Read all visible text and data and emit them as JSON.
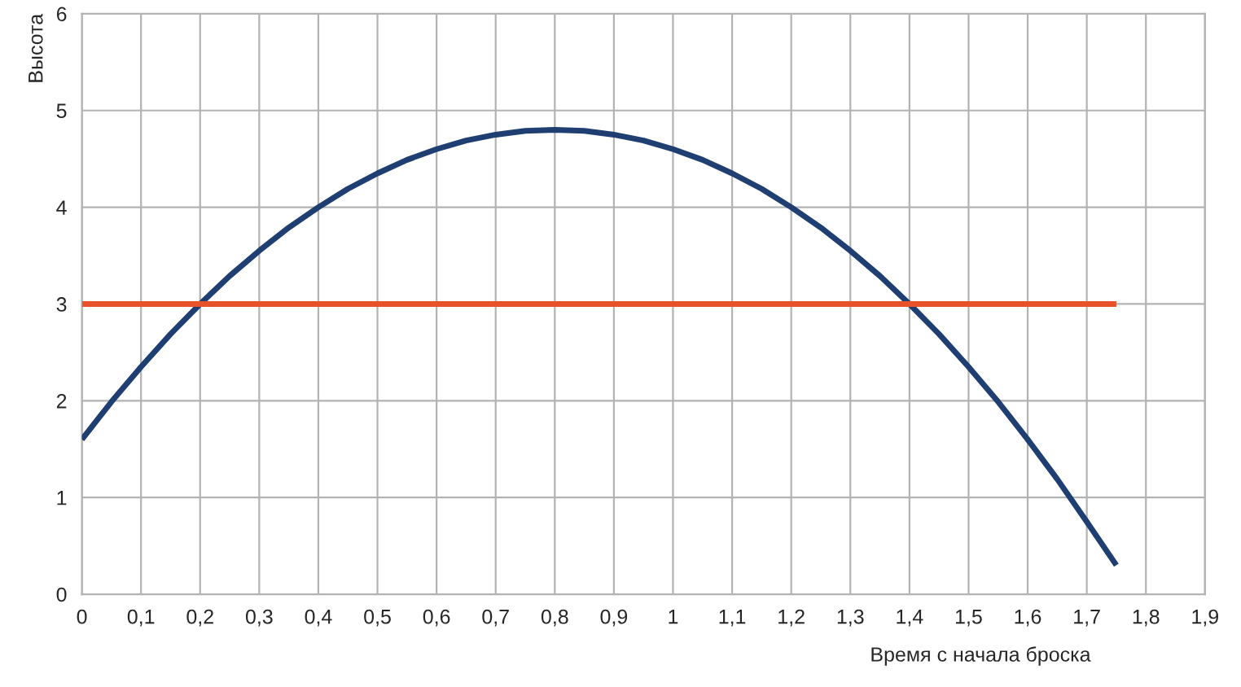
{
  "chart_data": {
    "type": "line",
    "xlabel": "Время с начала броска",
    "ylabel": "Высота",
    "series": [
      {
        "color": "#1f3f73",
        "x": [
          0,
          0.05,
          0.1,
          0.15,
          0.2,
          0.25,
          0.3,
          0.35,
          0.4,
          0.45,
          0.5,
          0.55,
          0.6,
          0.65,
          0.7,
          0.75,
          0.8,
          0.85,
          0.9,
          0.95,
          1.0,
          1.05,
          1.1,
          1.15,
          1.2,
          1.25,
          1.3,
          1.35,
          1.4,
          1.45,
          1.5,
          1.55,
          1.6,
          1.65,
          1.7,
          1.75
        ],
        "values": [
          1.6,
          1.99,
          2.35,
          2.69,
          3.0,
          3.29,
          3.55,
          3.79,
          4.0,
          4.19,
          4.35,
          4.49,
          4.6,
          4.69,
          4.75,
          4.79,
          4.8,
          4.79,
          4.75,
          4.69,
          4.6,
          4.49,
          4.35,
          4.19,
          4.0,
          3.79,
          3.55,
          3.29,
          3.0,
          2.69,
          2.35,
          1.99,
          1.6,
          1.19,
          0.75,
          0.3
        ]
      },
      {
        "color": "#e8522a",
        "x": [
          0,
          1.75
        ],
        "values": [
          3,
          3
        ]
      }
    ],
    "xlim": [
      0,
      1.9
    ],
    "ylim": [
      0,
      6
    ],
    "xticks": [
      0,
      {
        "value": 0.1,
        "label": "0,1"
      },
      {
        "value": 0.2,
        "label": "0,2"
      },
      {
        "value": 0.3,
        "label": "0,3"
      },
      {
        "value": 0.4,
        "label": "0,4"
      },
      {
        "value": 0.5,
        "label": "0,5"
      },
      {
        "value": 0.6,
        "label": "0,6"
      },
      {
        "value": 0.7,
        "label": "0,7"
      },
      {
        "value": 0.8,
        "label": "0,8"
      },
      {
        "value": 0.9,
        "label": "0,9"
      },
      1,
      {
        "value": 1.1,
        "label": "1,1"
      },
      {
        "value": 1.2,
        "label": "1,2"
      },
      {
        "value": 1.3,
        "label": "1,3"
      },
      {
        "value": 1.4,
        "label": "1,4"
      },
      {
        "value": 1.5,
        "label": "1,5"
      },
      {
        "value": 1.6,
        "label": "1,6"
      },
      {
        "value": 1.7,
        "label": "1,7"
      },
      {
        "value": 1.8,
        "label": "1,8"
      },
      {
        "value": 1.9,
        "label": "1,9"
      }
    ],
    "yticks": [
      0,
      1,
      2,
      3,
      4,
      5,
      6
    ],
    "grid": true,
    "marker": "none",
    "line_style": "solid"
  }
}
